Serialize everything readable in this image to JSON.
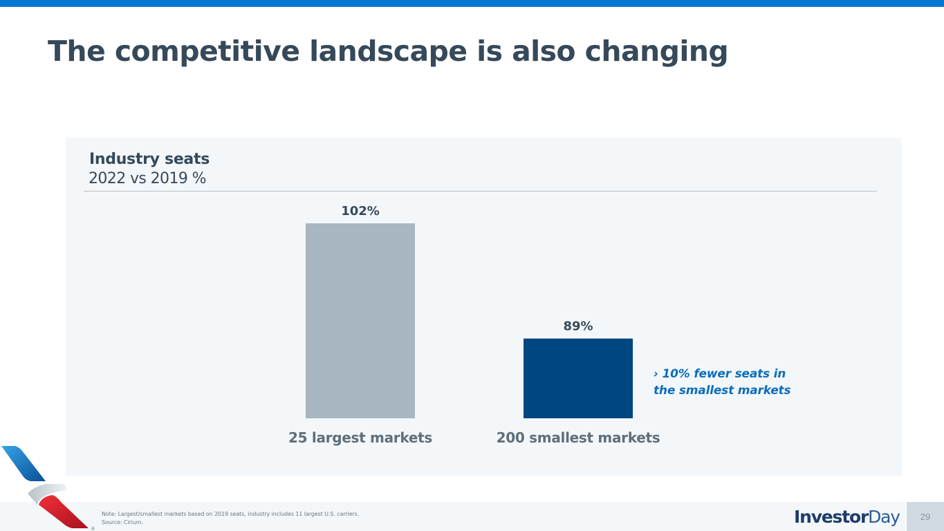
{
  "slide": {
    "title": "The competitive landscape is also changing",
    "page_number": "29",
    "accent_color": "#0078d2"
  },
  "chart_data": {
    "type": "bar",
    "title": "Industry seats",
    "subtitle": "2022 vs 2019 %",
    "categories": [
      "25 largest markets",
      "200 smallest markets"
    ],
    "values": [
      102,
      89
    ],
    "data_labels": [
      "102%",
      "89%"
    ],
    "colors": [
      "#a7b6c0",
      "#004681"
    ],
    "xlabel": "",
    "ylabel": "",
    "ylim": [
      80,
      102
    ],
    "grid": false,
    "legend": "none",
    "annotation": {
      "lines": [
        "› 10% fewer seats in",
        "the smallest markets"
      ],
      "color": "#0a6ebd"
    }
  },
  "footer": {
    "note_lines": [
      "Note: Largest/smallest markets based on 2019 seats, industry includes 11 largest U.S. carriers.",
      "Source: Cirium."
    ],
    "brand_part1": "Investor",
    "brand_part2": "Day",
    "logo_icon": "airline-flight-symbol-icon",
    "registered_mark": "®"
  }
}
